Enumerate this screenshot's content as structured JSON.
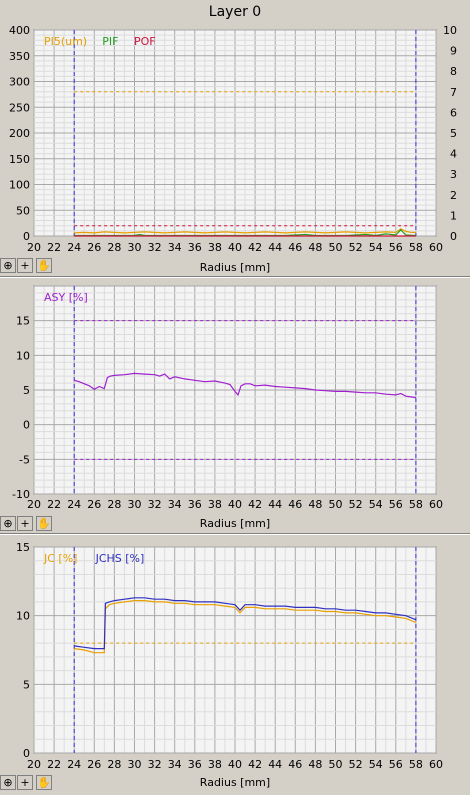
{
  "page_title": "Layer 0",
  "toolbar_icons": [
    "zoom-icon",
    "crosshair-icon",
    "pan-hand-icon"
  ],
  "chart_data": [
    {
      "type": "line",
      "xlabel": "Radius [mm]",
      "xlim": [
        20,
        60
      ],
      "xticks": [
        20,
        22,
        24,
        26,
        28,
        30,
        32,
        34,
        36,
        38,
        40,
        42,
        44,
        46,
        48,
        50,
        52,
        54,
        56,
        58,
        60
      ],
      "ylim": [
        0,
        400
      ],
      "yticks": [
        0,
        50,
        100,
        150,
        200,
        250,
        300,
        350,
        400
      ],
      "y2lim": [
        0,
        10
      ],
      "y2ticks": [
        0,
        1,
        2,
        3,
        4,
        5,
        6,
        7,
        8,
        9,
        10
      ],
      "grid": true,
      "legend_position": "top-left",
      "vlines": [
        24,
        58
      ],
      "series": [
        {
          "name": "PI5(um)",
          "color": "#e8a000",
          "axis": "left",
          "x": [
            24,
            25,
            26,
            27,
            28,
            29,
            30,
            31,
            32,
            33,
            34,
            35,
            36,
            37,
            38,
            39,
            40,
            41,
            42,
            43,
            44,
            45,
            46,
            47,
            48,
            49,
            50,
            51,
            52,
            53,
            54,
            55,
            56,
            56.5,
            57,
            57.5,
            58
          ],
          "y": [
            6,
            7,
            6,
            8,
            7,
            6,
            7,
            8,
            7,
            6,
            7,
            8,
            7,
            6,
            7,
            8,
            7,
            6,
            7,
            8,
            7,
            6,
            7,
            8,
            7,
            6,
            7,
            8,
            7,
            6,
            7,
            8,
            7,
            14,
            9,
            7,
            7
          ]
        },
        {
          "name": "PIF",
          "color": "#20a020",
          "axis": "left",
          "x": [
            24,
            26,
            28,
            30,
            30.5,
            31,
            33,
            35,
            37,
            39,
            41,
            43,
            45,
            47,
            48,
            49,
            51,
            53,
            54,
            55,
            56,
            56.5,
            57,
            58
          ],
          "y": [
            1,
            1,
            1,
            1,
            3,
            1,
            1,
            1,
            1,
            1,
            1,
            1,
            1,
            3,
            1,
            1,
            1,
            3,
            1,
            4,
            2,
            12,
            2,
            1
          ]
        },
        {
          "name": "POF",
          "color": "#d0103c",
          "axis": "left",
          "x": [
            24,
            58
          ],
          "y": [
            0,
            0
          ]
        }
      ],
      "limits": [
        {
          "color": "#e8a000",
          "axis": "right",
          "value": 7
        },
        {
          "color": "#d0103c",
          "axis": "right",
          "value": 0.5
        }
      ]
    },
    {
      "type": "line",
      "xlabel": "Radius [mm]",
      "xlim": [
        20,
        60
      ],
      "xticks": [
        20,
        22,
        24,
        26,
        28,
        30,
        32,
        34,
        36,
        38,
        40,
        42,
        44,
        46,
        48,
        50,
        52,
        54,
        56,
        58,
        60
      ],
      "ylim": [
        -10,
        20
      ],
      "yticks": [
        -10,
        -5,
        0,
        5,
        10,
        15
      ],
      "grid": true,
      "legend_position": "top-left",
      "vlines": [
        24,
        58
      ],
      "series": [
        {
          "name": "ASY [%]",
          "color": "#a020d0",
          "x": [
            24,
            24.5,
            25,
            25.5,
            26,
            26.5,
            27,
            27.3,
            27.6,
            28,
            29,
            30,
            31,
            32,
            32.5,
            33,
            33.5,
            34,
            35,
            36,
            37,
            38,
            39,
            39.5,
            40,
            40.3,
            40.6,
            41,
            41.5,
            42,
            43,
            44,
            45,
            46,
            47,
            48,
            49,
            50,
            51,
            52,
            53,
            54,
            55,
            56,
            56.5,
            57,
            57.5,
            58
          ],
          "y": [
            6.4,
            6.2,
            5.9,
            5.6,
            5.1,
            5.5,
            5.2,
            6.8,
            7,
            7.1,
            7.2,
            7.4,
            7.3,
            7.2,
            7.0,
            7.3,
            6.6,
            6.9,
            6.6,
            6.4,
            6.2,
            6.3,
            6.0,
            5.8,
            4.8,
            4.3,
            5.6,
            5.9,
            5.9,
            5.6,
            5.7,
            5.5,
            5.4,
            5.3,
            5.2,
            5.0,
            4.9,
            4.8,
            4.8,
            4.7,
            4.6,
            4.6,
            4.4,
            4.3,
            4.5,
            4.1,
            4.0,
            3.9
          ]
        }
      ],
      "limits": [
        {
          "color": "#a020d0",
          "value": 15
        },
        {
          "color": "#a020d0",
          "value": -5
        }
      ]
    },
    {
      "type": "line",
      "xlabel": "Radius [mm]",
      "xlim": [
        20,
        60
      ],
      "xticks": [
        20,
        22,
        24,
        26,
        28,
        30,
        32,
        34,
        36,
        38,
        40,
        42,
        44,
        46,
        48,
        50,
        52,
        54,
        56,
        58,
        60
      ],
      "ylim": [
        0,
        15
      ],
      "yticks": [
        0,
        5,
        10,
        15
      ],
      "grid": true,
      "legend_position": "top-left",
      "vlines": [
        24,
        58
      ],
      "series": [
        {
          "name": "JC [%]",
          "color": "#e8a000",
          "x": [
            24,
            25,
            26,
            27,
            27.1,
            27.5,
            28,
            29,
            30,
            31,
            32,
            33,
            34,
            35,
            36,
            37,
            38,
            39,
            40,
            40.5,
            41,
            42,
            43,
            44,
            45,
            46,
            47,
            48,
            49,
            50,
            51,
            52,
            53,
            54,
            55,
            56,
            57,
            58
          ],
          "y": [
            7.6,
            7.5,
            7.3,
            7.3,
            10.5,
            10.8,
            10.9,
            11.0,
            11.1,
            11.1,
            11.0,
            11.0,
            10.9,
            10.9,
            10.8,
            10.8,
            10.8,
            10.7,
            10.6,
            10.2,
            10.6,
            10.6,
            10.5,
            10.5,
            10.5,
            10.4,
            10.4,
            10.4,
            10.3,
            10.3,
            10.2,
            10.2,
            10.1,
            10.0,
            10.0,
            9.9,
            9.8,
            9.5
          ]
        },
        {
          "name": "JCHS [%]",
          "color": "#3030c0",
          "x": [
            24,
            25,
            26,
            27,
            27.1,
            27.5,
            28,
            29,
            30,
            31,
            32,
            33,
            34,
            35,
            36,
            37,
            38,
            39,
            40,
            40.5,
            41,
            42,
            43,
            44,
            45,
            46,
            47,
            48,
            49,
            50,
            51,
            52,
            53,
            54,
            55,
            56,
            57,
            58
          ],
          "y": [
            7.8,
            7.7,
            7.6,
            7.6,
            10.9,
            11.0,
            11.1,
            11.2,
            11.3,
            11.3,
            11.2,
            11.2,
            11.1,
            11.1,
            11.0,
            11.0,
            11.0,
            10.9,
            10.8,
            10.4,
            10.8,
            10.8,
            10.7,
            10.7,
            10.7,
            10.6,
            10.6,
            10.6,
            10.5,
            10.5,
            10.4,
            10.4,
            10.3,
            10.2,
            10.2,
            10.1,
            10.0,
            9.7
          ]
        }
      ],
      "limits": [
        {
          "color": "#e8a000",
          "value": 8
        }
      ]
    }
  ]
}
